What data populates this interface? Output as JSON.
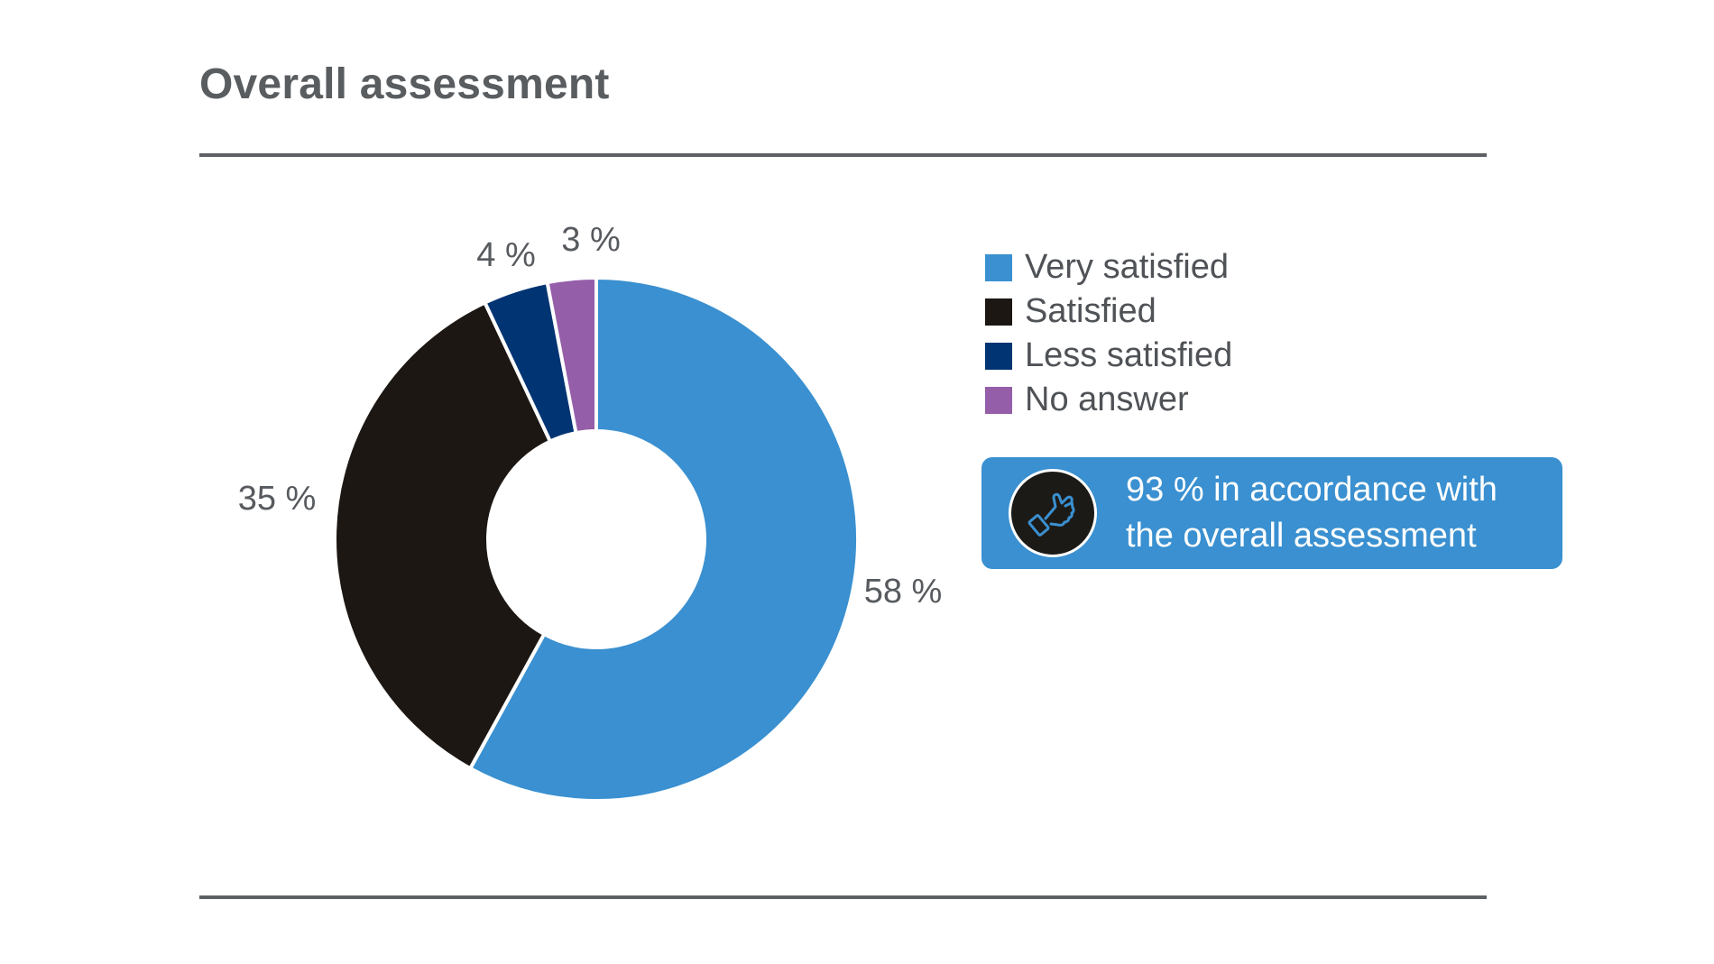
{
  "title": "Overall assessment",
  "chart_data": {
    "type": "donut",
    "slices": [
      {
        "label": "Very satisfied",
        "value": 58,
        "value_label": "58 %",
        "color": "#3a90d0"
      },
      {
        "label": "Satisfied",
        "value": 35,
        "value_label": "35 %",
        "color": "#1c1713"
      },
      {
        "label": "Less satisfied",
        "value": 4,
        "value_label": "4 %",
        "color": "#003473"
      },
      {
        "label": "No answer",
        "value": 3,
        "value_label": "3 %",
        "color": "#955ea9"
      }
    ],
    "start": "12 o'clock",
    "direction": "clockwise",
    "legend_position": "right",
    "value_label_color": "#575a5e"
  },
  "callout": {
    "text": "93 % in accordance with the overall assessment",
    "icon": "thumbs-up-icon",
    "background": "#3a90d0"
  }
}
